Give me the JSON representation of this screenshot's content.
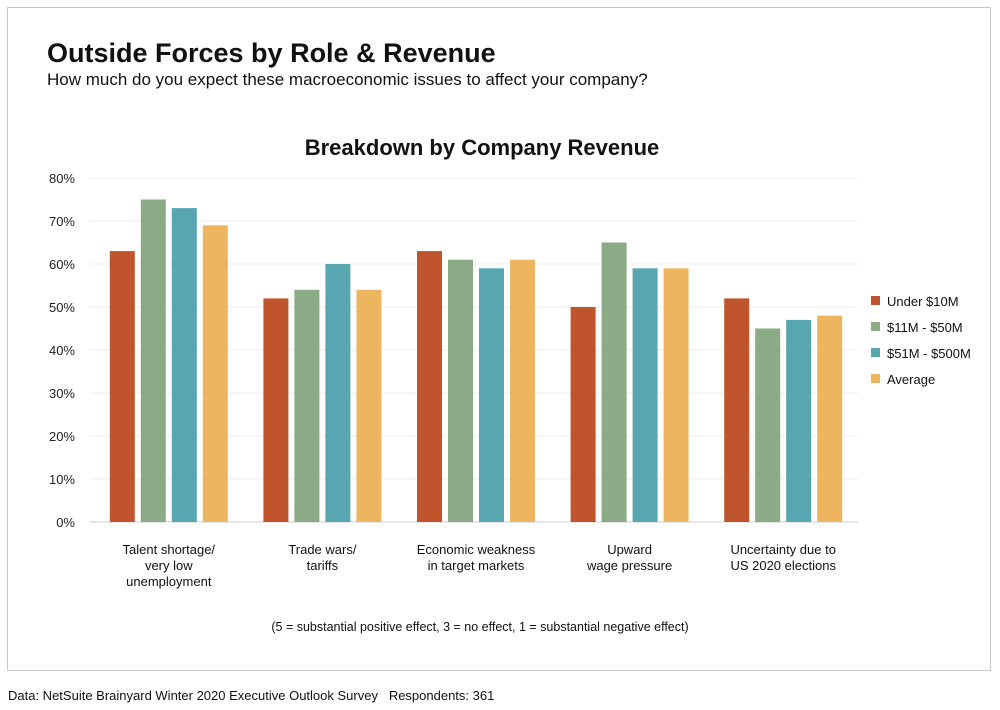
{
  "header": {
    "title": "Outside Forces by Role & Revenue",
    "subtitle": "How much do you expect these macroeconomic issues to affect your company?"
  },
  "footer": {
    "source": "Data: NetSuite Brainyard Winter 2020 Executive Outlook Survey",
    "respondents": "Respondents: 361"
  },
  "chart_data": {
    "type": "bar",
    "title": "Breakdown by Company Revenue",
    "xlabel": "",
    "ylabel": "",
    "ylim": [
      0,
      80
    ],
    "yticks": [
      "0%",
      "10%",
      "20%",
      "30%",
      "40%",
      "50%",
      "60%",
      "70%",
      "80%"
    ],
    "categories": [
      [
        "Talent shortage/",
        "very low",
        "unemployment"
      ],
      [
        "Trade wars/",
        "tariffs"
      ],
      [
        "Economic weakness",
        "in target markets"
      ],
      [
        "Upward",
        "wage pressure"
      ],
      [
        "Uncertainty due to",
        "US 2020 elections"
      ]
    ],
    "series": [
      {
        "name": "Under $10M",
        "color": "#c0542c",
        "values": [
          63,
          52,
          63,
          50,
          52
        ]
      },
      {
        "name": "$11M - $50M",
        "color": "#8aab86",
        "values": [
          75,
          54,
          61,
          65,
          45
        ]
      },
      {
        "name": "$51M - $500M",
        "color": "#57a6b0",
        "values": [
          73,
          60,
          59,
          59,
          47
        ]
      },
      {
        "name": "Average",
        "color": "#eeb561",
        "values": [
          69,
          54,
          61,
          59,
          48
        ]
      }
    ],
    "legend_position": "right",
    "note": "(5 = substantial positive effect, 3 = no effect, 1 = substantial negative effect)"
  }
}
